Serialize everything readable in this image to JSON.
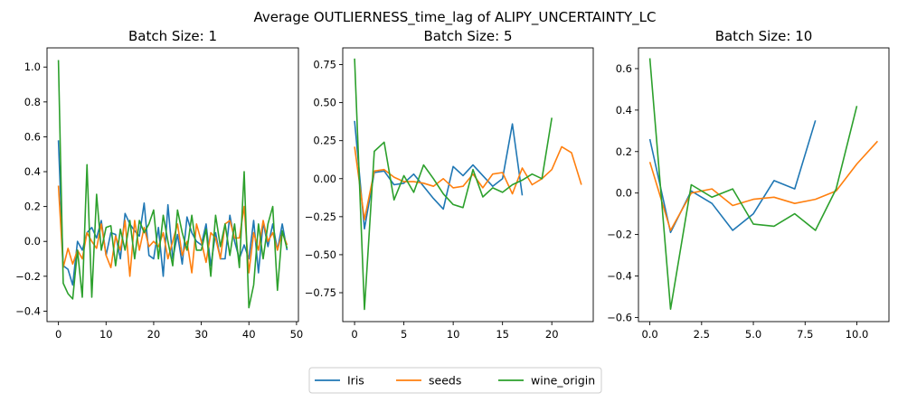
{
  "title": "Average OUTLIERNESS_time_lag of ALIPY_UNCERTAINTY_LC",
  "series_colors": {
    "Iris": "#1f77b4",
    "seeds": "#ff7f0e",
    "wine_origin": "#2ca02c"
  },
  "legend": {
    "placement": "bottom-center",
    "entries": [
      "Iris",
      "seeds",
      "wine_origin"
    ]
  },
  "chart_data": [
    {
      "type": "line",
      "title": "Batch Size: 1",
      "xlim": [
        -2.4,
        50.4
      ],
      "ylim": [
        -0.46,
        1.11
      ],
      "xticks": [
        0,
        10,
        20,
        30,
        40,
        50
      ],
      "yticks": [
        -0.4,
        -0.2,
        0.0,
        0.2,
        0.4,
        0.6,
        0.8,
        1.0
      ],
      "ytick_labels": [
        "−0.4",
        "−0.2",
        "0.0",
        "0.2",
        "0.4",
        "0.6",
        "0.8",
        "1.0"
      ],
      "grid": false,
      "series": [
        {
          "name": "Iris",
          "x": [
            0,
            1,
            2,
            3,
            4,
            5,
            6,
            7,
            8,
            9,
            10,
            11,
            12,
            13,
            14,
            15,
            16,
            17,
            18,
            19,
            20,
            21,
            22,
            23,
            24,
            25,
            26,
            27,
            28,
            29,
            30,
            31,
            32,
            33,
            34,
            35,
            36,
            37,
            38,
            39,
            40,
            41,
            42,
            43,
            44,
            45,
            46,
            47,
            48
          ],
          "y": [
            0.58,
            -0.14,
            -0.16,
            -0.25,
            0.0,
            -0.05,
            0.05,
            0.08,
            0.02,
            0.12,
            -0.08,
            0.05,
            0.04,
            -0.1,
            0.16,
            0.1,
            0.06,
            0.03,
            0.22,
            -0.08,
            -0.1,
            0.08,
            -0.2,
            0.21,
            -0.1,
            0.04,
            -0.13,
            0.14,
            0.05,
            0.0,
            -0.02,
            0.1,
            -0.14,
            0.05,
            -0.1,
            -0.1,
            0.15,
            0.0,
            -0.1,
            -0.02,
            -0.1,
            0.12,
            -0.18,
            0.11,
            -0.03,
            0.1,
            -0.05,
            0.1,
            -0.05
          ]
        },
        {
          "name": "seeds",
          "x": [
            0,
            1,
            2,
            3,
            4,
            5,
            6,
            7,
            8,
            9,
            10,
            11,
            12,
            13,
            14,
            15,
            16,
            17,
            18,
            19,
            20,
            21,
            22,
            23,
            24,
            25,
            26,
            27,
            28,
            29,
            30,
            31,
            32,
            33,
            34,
            35,
            36,
            37,
            38,
            39,
            40,
            41,
            42,
            43,
            44,
            45,
            46,
            47,
            48
          ],
          "y": [
            0.32,
            -0.15,
            -0.04,
            -0.13,
            -0.05,
            -0.1,
            0.05,
            0.0,
            -0.04,
            0.1,
            -0.08,
            -0.15,
            0.03,
            -0.05,
            0.12,
            -0.2,
            0.12,
            -0.05,
            0.08,
            -0.03,
            0.0,
            -0.03,
            0.05,
            -0.1,
            0.0,
            0.1,
            -0.08,
            0.0,
            -0.18,
            0.1,
            0.0,
            -0.12,
            0.05,
            0.02,
            -0.1,
            0.1,
            0.12,
            0.02,
            0.02,
            0.2,
            -0.18,
            0.05,
            -0.05,
            0.12,
            0.0,
            0.05,
            -0.05,
            0.05,
            -0.02
          ]
        },
        {
          "name": "wine_origin",
          "x": [
            0,
            1,
            2,
            3,
            4,
            5,
            6,
            7,
            8,
            9,
            10,
            11,
            12,
            13,
            14,
            15,
            16,
            17,
            18,
            19,
            20,
            21,
            22,
            23,
            24,
            25,
            26,
            27,
            28,
            29,
            30,
            31,
            32,
            33,
            34,
            35,
            36,
            37,
            38,
            39,
            40,
            41,
            42,
            43,
            44,
            45,
            46,
            47,
            48
          ],
          "y": [
            1.04,
            -0.24,
            -0.3,
            -0.33,
            -0.05,
            -0.32,
            0.44,
            -0.32,
            0.27,
            -0.05,
            0.08,
            0.09,
            -0.14,
            0.07,
            -0.05,
            0.12,
            -0.1,
            0.12,
            0.05,
            0.1,
            0.18,
            -0.1,
            0.15,
            0.0,
            -0.14,
            0.18,
            0.05,
            -0.05,
            0.15,
            -0.05,
            -0.05,
            0.07,
            -0.2,
            0.15,
            -0.03,
            0.1,
            -0.08,
            0.1,
            -0.15,
            0.4,
            -0.38,
            -0.25,
            0.1,
            -0.1,
            0.1,
            0.2,
            -0.28,
            0.06,
            -0.04
          ]
        }
      ]
    },
    {
      "type": "line",
      "title": "Batch Size: 5",
      "xlim": [
        -1.2,
        24.2
      ],
      "ylim": [
        -0.94,
        0.86
      ],
      "xticks": [
        0,
        5,
        10,
        15,
        20
      ],
      "yticks": [
        -0.75,
        -0.5,
        -0.25,
        0.0,
        0.25,
        0.5,
        0.75
      ],
      "ytick_labels": [
        "−0.75",
        "−0.50",
        "−0.25",
        "0.00",
        "0.25",
        "0.50",
        "0.75"
      ],
      "grid": false,
      "series": [
        {
          "name": "Iris",
          "x": [
            0,
            1,
            2,
            3,
            4,
            5,
            6,
            7,
            8,
            9,
            10,
            11,
            12,
            13,
            14,
            15,
            16,
            17
          ],
          "y": [
            0.38,
            -0.33,
            0.04,
            0.05,
            -0.04,
            -0.03,
            0.03,
            -0.05,
            -0.13,
            -0.2,
            0.08,
            0.02,
            0.09,
            0.02,
            -0.05,
            0.0,
            0.36,
            -0.11
          ]
        },
        {
          "name": "seeds",
          "x": [
            0,
            1,
            2,
            3,
            4,
            5,
            6,
            7,
            8,
            9,
            10,
            11,
            12,
            13,
            14,
            15,
            16,
            17,
            18,
            19,
            20,
            21,
            22,
            23
          ],
          "y": [
            0.21,
            -0.27,
            0.05,
            0.06,
            0.01,
            -0.02,
            -0.02,
            -0.03,
            -0.05,
            0.0,
            -0.06,
            -0.05,
            0.03,
            -0.06,
            0.03,
            0.04,
            -0.1,
            0.07,
            -0.04,
            0.0,
            0.06,
            0.21,
            0.17,
            -0.04
          ]
        },
        {
          "name": "wine_origin",
          "x": [
            0,
            1,
            2,
            3,
            4,
            5,
            6,
            7,
            8,
            9,
            10,
            11,
            12,
            13,
            14,
            15,
            16,
            17,
            18,
            19,
            20
          ],
          "y": [
            0.79,
            -0.86,
            0.18,
            0.24,
            -0.14,
            0.02,
            -0.09,
            0.09,
            0.0,
            -0.1,
            -0.17,
            -0.19,
            0.06,
            -0.12,
            -0.06,
            -0.09,
            -0.04,
            -0.01,
            0.03,
            0.0,
            0.4
          ]
        }
      ]
    },
    {
      "type": "line",
      "title": "Batch Size: 10",
      "xlim": [
        -0.55,
        11.55
      ],
      "ylim": [
        -0.62,
        0.7
      ],
      "xticks": [
        0.0,
        2.5,
        5.0,
        7.5,
        10.0
      ],
      "yticks": [
        -0.6,
        -0.4,
        -0.2,
        0.0,
        0.2,
        0.4,
        0.6
      ],
      "ytick_labels": [
        "−0.6",
        "−0.4",
        "−0.2",
        "0.0",
        "0.2",
        "0.4",
        "0.6"
      ],
      "grid": false,
      "series": [
        {
          "name": "Iris",
          "x": [
            0,
            1,
            2,
            3,
            4,
            5,
            6,
            7,
            8
          ],
          "y": [
            0.26,
            -0.19,
            0.01,
            -0.05,
            -0.18,
            -0.1,
            0.06,
            0.02,
            0.35
          ]
        },
        {
          "name": "seeds",
          "x": [
            0,
            1,
            2,
            3,
            4,
            5,
            6,
            7,
            8,
            9,
            10,
            11
          ],
          "y": [
            0.15,
            -0.18,
            0.0,
            0.02,
            -0.06,
            -0.03,
            -0.02,
            -0.05,
            -0.03,
            0.01,
            0.14,
            0.25
          ]
        },
        {
          "name": "wine_origin",
          "x": [
            0,
            1,
            2,
            3,
            4,
            5,
            6,
            7,
            8,
            9,
            10
          ],
          "y": [
            0.65,
            -0.56,
            0.04,
            -0.02,
            0.02,
            -0.15,
            -0.16,
            -0.1,
            -0.18,
            0.02,
            0.42
          ]
        }
      ]
    }
  ]
}
